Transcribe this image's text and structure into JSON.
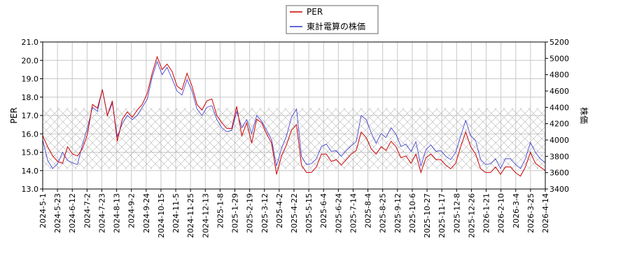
{
  "chart_data": {
    "type": "line",
    "legend": {
      "placement": "top-center",
      "entries": [
        {
          "name": "PER",
          "color": "#cc0000"
        },
        {
          "name": "東計電算の株価",
          "color": "#3333cc"
        }
      ]
    },
    "y_left": {
      "label": "PER",
      "range": [
        13.0,
        21.0
      ],
      "ticks": [
        "13.0",
        "14.0",
        "15.0",
        "16.0",
        "17.0",
        "18.0",
        "19.0",
        "20.0",
        "21.0"
      ]
    },
    "y_right": {
      "label": "株価",
      "range": [
        3400,
        5200
      ],
      "ticks": [
        "3400",
        "3600",
        "3800",
        "4000",
        "4200",
        "4400",
        "4600",
        "4800",
        "5000",
        "5200"
      ]
    },
    "x_ticks": [
      "2024-5-1",
      "2024-5-23",
      "2024-6-12",
      "2024-7-2",
      "2024-7-23",
      "2024-8-13",
      "2024-9-2",
      "2024-9-24",
      "2024-10-15",
      "2024-11-5",
      "2024-11-25",
      "2024-12-13",
      "2025-1-8",
      "2025-1-29",
      "2025-2-19",
      "2025-3-12",
      "2025-4-2",
      "2025-4-22",
      "2025-5-15",
      "2025-6-4",
      "2025-6-24",
      "2025-7-14",
      "2025-8-4",
      "2025-8-25",
      "2025-9-12",
      "2025-10-6",
      "2025-10-27",
      "2025-11-17",
      "2025-12-8",
      "2025-12-26",
      "2026-1-21",
      "2026-2-10",
      "2026-3-4",
      "2026-3-25",
      "2026-4-14"
    ],
    "grid": true,
    "hatched_band_per": [
      14.1,
      17.4
    ],
    "series": [
      {
        "name": "PER",
        "axis": "left",
        "color": "#cc0000",
        "values": [
          15.9,
          15.3,
          14.8,
          14.5,
          14.4,
          15.3,
          14.9,
          14.8,
          15.2,
          16.0,
          17.6,
          17.4,
          18.4,
          17.0,
          17.8,
          15.6,
          16.8,
          17.2,
          16.9,
          17.3,
          17.6,
          18.2,
          19.3,
          20.2,
          19.5,
          19.8,
          19.4,
          18.6,
          18.4,
          19.3,
          18.6,
          17.6,
          17.3,
          17.8,
          17.9,
          17.0,
          16.6,
          16.3,
          16.3,
          17.5,
          15.9,
          16.6,
          15.5,
          16.8,
          16.6,
          16.0,
          15.5,
          13.8,
          14.8,
          15.4,
          16.2,
          16.5,
          14.3,
          13.9,
          13.9,
          14.2,
          14.9,
          14.9,
          14.5,
          14.6,
          14.3,
          14.6,
          14.9,
          15.1,
          16.1,
          15.8,
          15.2,
          14.9,
          15.3,
          15.1,
          15.6,
          15.3,
          14.7,
          14.8,
          14.4,
          14.9,
          13.9,
          14.7,
          14.9,
          14.6,
          14.6,
          14.3,
          14.1,
          14.4,
          15.3,
          16.1,
          15.3,
          14.9,
          14.1,
          13.9,
          13.9,
          14.2,
          13.8,
          14.2,
          14.2,
          13.9,
          13.7,
          14.2,
          15.0,
          14.4,
          14.2,
          14.0
        ]
      },
      {
        "name": "東計電算の株価",
        "axis": "right",
        "color": "#3333cc",
        "values": [
          4000,
          3750,
          3650,
          3710,
          3850,
          3750,
          3720,
          3700,
          3950,
          4150,
          4400,
          4350,
          4620,
          4300,
          4450,
          4040,
          4200,
          4300,
          4250,
          4300,
          4400,
          4500,
          4770,
          4960,
          4800,
          4890,
          4750,
          4600,
          4550,
          4740,
          4600,
          4380,
          4300,
          4400,
          4420,
          4250,
          4150,
          4100,
          4120,
          4350,
          4150,
          4250,
          4080,
          4300,
          4230,
          4120,
          4000,
          3680,
          3900,
          4050,
          4280,
          4380,
          3800,
          3700,
          3710,
          3770,
          3920,
          3950,
          3860,
          3870,
          3800,
          3870,
          3930,
          3980,
          4300,
          4250,
          4090,
          3960,
          4080,
          4030,
          4150,
          4070,
          3920,
          3950,
          3860,
          3980,
          3680,
          3880,
          3940,
          3860,
          3870,
          3800,
          3760,
          3850,
          4050,
          4240,
          4050,
          3990,
          3760,
          3700,
          3710,
          3770,
          3650,
          3770,
          3770,
          3700,
          3650,
          3770,
          3970,
          3850,
          3770,
          3720
        ]
      }
    ]
  }
}
